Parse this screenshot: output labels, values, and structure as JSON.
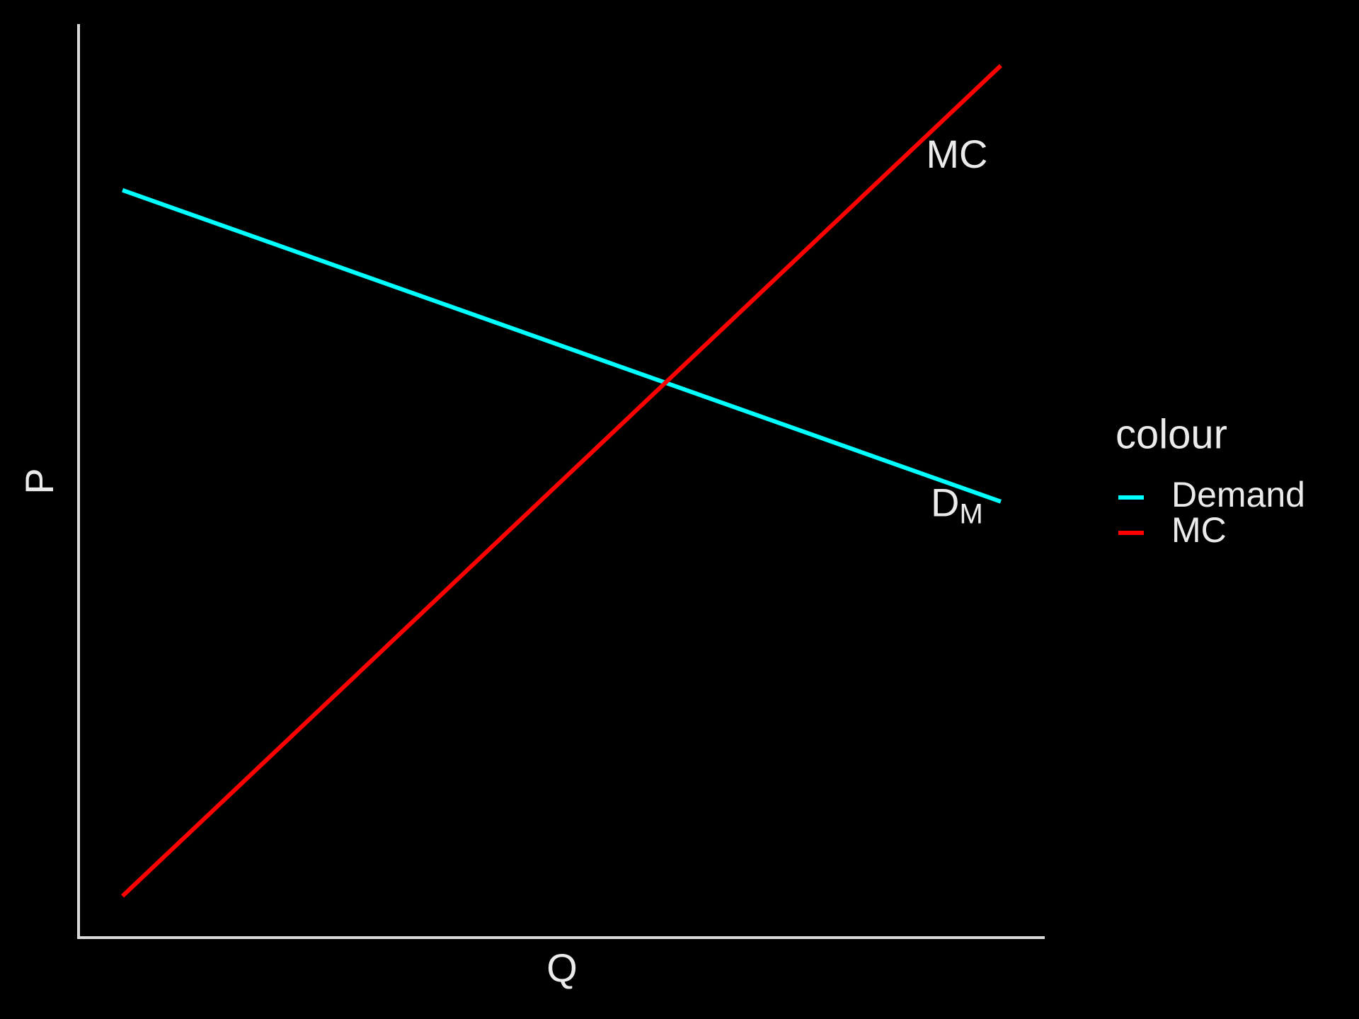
{
  "chart_data": {
    "type": "line",
    "x_label": "Q",
    "y_label": "P",
    "x": [
      0,
      10
    ],
    "xlim": [
      -0.5,
      10.5
    ],
    "ylim": [
      -0.5,
      10.5
    ],
    "series": [
      {
        "name": "Demand",
        "color": "#00ffff",
        "values": [
          8.5,
          4.75
        ]
      },
      {
        "name": "MC",
        "color": "#ff0000",
        "values": [
          0,
          10
        ]
      }
    ],
    "legend_title": "colour",
    "legend": "right",
    "grid": false,
    "annotations": [
      {
        "text": "MC",
        "x": 9.5,
        "y": 8.9
      },
      {
        "text": "D",
        "subscript": "M",
        "x": 9.5,
        "y": 4.7
      }
    ]
  }
}
